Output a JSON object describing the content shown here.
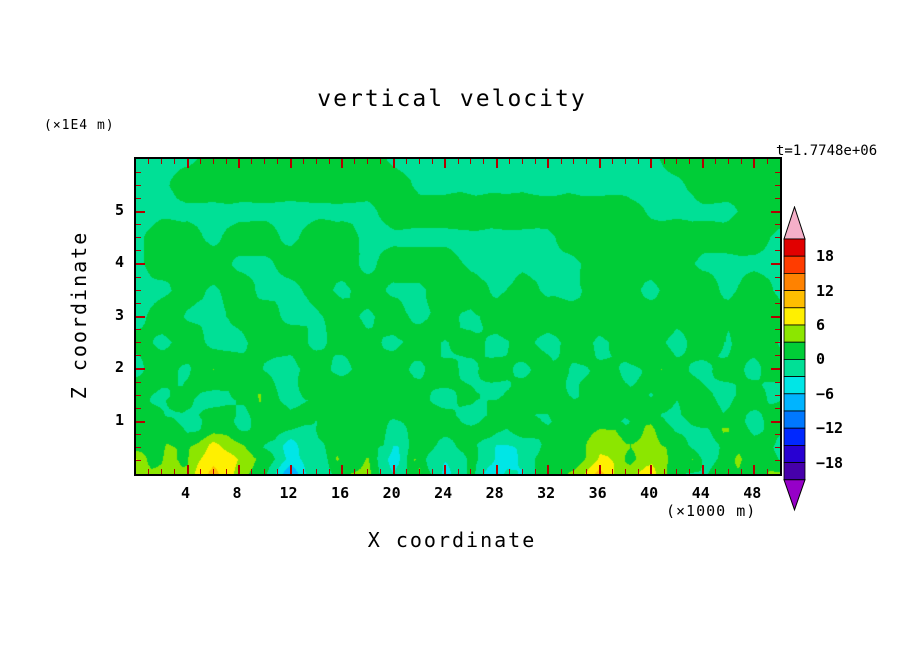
{
  "title": "vertical velocity",
  "annotations": {
    "time_label": "t=1.7748e+06",
    "z_unit_label": "(×1E4 m)",
    "x_unit_label": "(×1000 m)"
  },
  "axes": {
    "x": {
      "label": "X coordinate",
      "min": 0,
      "max": 50,
      "major_ticks": [
        4,
        8,
        12,
        16,
        20,
        24,
        28,
        32,
        36,
        40,
        44,
        48
      ],
      "minor_step": 1
    },
    "z": {
      "label": "Z coordinate",
      "min": 0,
      "max": 6,
      "major_ticks": [
        1,
        2,
        3,
        4,
        5
      ],
      "minor_step": 0.25
    }
  },
  "colorbar": {
    "labels": [
      18,
      12,
      6,
      0,
      -6,
      -12,
      -18
    ],
    "levels": [
      -21,
      -18,
      -15,
      -12,
      -9,
      -6,
      -3,
      0,
      3,
      6,
      9,
      12,
      15,
      18,
      21
    ],
    "band_colors_low_to_high": [
      "#4600aa",
      "#2800d2",
      "#0028ff",
      "#0078ff",
      "#00b4ff",
      "#00e6e6",
      "#00e096",
      "#00cd37",
      "#8ce600",
      "#fff000",
      "#ffbe00",
      "#ff8200",
      "#ff3c00",
      "#e10000"
    ],
    "below_color": "#9600c8",
    "above_color": "#f5afc8",
    "tick_color": "#b40000"
  },
  "chart_data": {
    "type": "heatmap",
    "title": "vertical velocity",
    "xlabel": "X coordinate (×1000 m)",
    "ylabel": "Z coordinate (×1E4 m)",
    "time": "t=1.7748e+06",
    "xlim": [
      0,
      50
    ],
    "zlim": [
      0,
      6
    ],
    "contour_levels": [
      -21,
      -18,
      -15,
      -12,
      -9,
      -6,
      -3,
      0,
      3,
      6,
      9,
      12,
      15,
      18,
      21
    ],
    "x": [
      0,
      2,
      4,
      6,
      8,
      10,
      12,
      14,
      16,
      18,
      20,
      22,
      24,
      26,
      28,
      30,
      32,
      34,
      36,
      38,
      40,
      42,
      44,
      46,
      48,
      50
    ],
    "z": [
      6,
      5.5,
      5,
      4.5,
      4,
      3.5,
      3,
      2.5,
      2,
      1.5,
      1,
      0.5,
      0
    ],
    "values": [
      [
        -1,
        -1,
        -1,
        2,
        2,
        2,
        2,
        2,
        2,
        2,
        -1,
        -1,
        -1,
        -1,
        -1,
        -1,
        -1,
        -1,
        -1,
        -1,
        -1,
        2,
        2,
        2,
        2,
        2
      ],
      [
        -1,
        -1,
        2,
        2,
        2,
        2,
        2,
        2,
        2,
        2,
        2,
        -1,
        -1,
        -1,
        -1,
        -1,
        -1,
        -1,
        -1,
        -1,
        -1,
        -1,
        2,
        2,
        2,
        2
      ],
      [
        -1,
        -1,
        -1,
        -1,
        -1,
        -1,
        -1,
        -1,
        -1,
        -1,
        2,
        2,
        2,
        2,
        2,
        2,
        2,
        2,
        2,
        2,
        -1,
        -1,
        -1,
        -1,
        2,
        2
      ],
      [
        -1,
        2,
        2,
        -1,
        2,
        2,
        -1,
        2,
        2,
        -1,
        -1,
        -1,
        -1,
        -1,
        -1,
        -1,
        -1,
        2,
        2,
        2,
        2,
        2,
        2,
        2,
        2,
        -1
      ],
      [
        -1,
        2,
        2,
        2,
        -1,
        -1,
        2,
        2,
        2,
        -1,
        2,
        2,
        2,
        -1,
        -1,
        -1,
        -1,
        -1,
        2,
        2,
        2,
        2,
        -1,
        -1,
        -1,
        -1
      ],
      [
        -1,
        -1,
        2,
        -1,
        2,
        -1,
        -1,
        2,
        -1,
        2,
        -1,
        -1,
        2,
        2,
        -1,
        2,
        -1,
        -1,
        2,
        2,
        -1,
        2,
        2,
        -1,
        2,
        -1
      ],
      [
        -1,
        2,
        -1,
        -1,
        2,
        2,
        -1,
        -1,
        2,
        -1,
        2,
        -1,
        2,
        -1,
        2,
        2,
        2,
        2,
        2,
        2,
        2,
        2,
        2,
        2,
        2,
        2
      ],
      [
        2,
        -1,
        2,
        -1,
        -1,
        2,
        2,
        -1,
        2,
        2,
        -1,
        2,
        -1,
        2,
        -1,
        2,
        -1,
        2,
        -1,
        2,
        2,
        -1,
        2,
        -1,
        2,
        -1
      ],
      [
        -1,
        2,
        -1,
        2,
        2,
        -1,
        -1,
        2,
        -1,
        2,
        2,
        -1,
        2,
        -1,
        2,
        -1,
        2,
        -1,
        2,
        -1,
        2,
        2,
        -1,
        2,
        -1,
        2
      ],
      [
        2,
        -1,
        2,
        -1,
        2,
        2,
        -1,
        2,
        2,
        -1,
        2,
        2,
        -1,
        2,
        -1,
        2,
        2,
        -1,
        2,
        2,
        -1,
        2,
        2,
        -1,
        2,
        -1
      ],
      [
        2,
        2,
        -1,
        2,
        -1,
        2,
        2,
        -1,
        2,
        2,
        -1,
        2,
        2,
        -1,
        2,
        2,
        -1,
        2,
        2,
        -1,
        2,
        -1,
        2,
        2,
        -1,
        2
      ],
      [
        3,
        2,
        2,
        6,
        3,
        -1,
        -4,
        -1,
        2,
        2,
        -2,
        2,
        -3,
        2,
        -4,
        -2,
        2,
        2,
        6,
        3,
        4,
        2,
        -1,
        2,
        2,
        -1
      ],
      [
        7,
        3,
        2,
        10,
        5,
        2,
        -7,
        -2,
        2,
        2,
        -3,
        2,
        -5,
        2,
        -5,
        -3,
        2,
        4,
        9,
        5,
        7,
        2,
        2,
        2,
        2,
        2
      ]
    ]
  },
  "render_hints": {
    "noise_base": 0.3,
    "noise_amp": 2.1,
    "noise_zfade": 4.2,
    "noise_pow": 1.4,
    "noise_dx": 1.2,
    "noise_dz": 0.28
  }
}
